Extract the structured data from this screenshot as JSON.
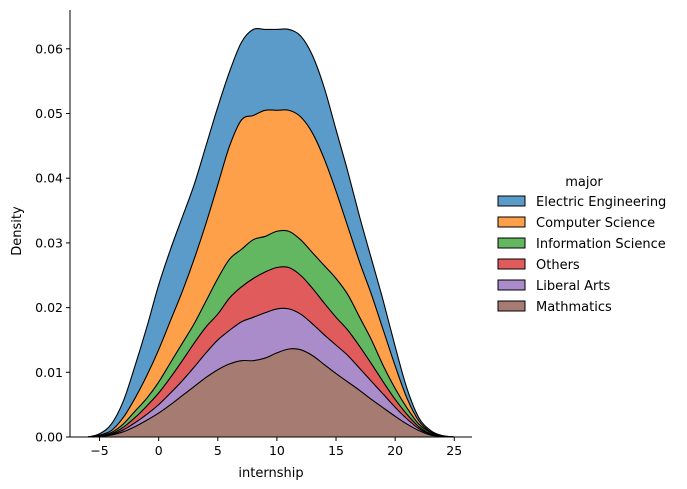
{
  "chart_data": {
    "type": "area",
    "stacked": true,
    "xlabel": "internship",
    "ylabel": "Density",
    "xlim": [
      -7.5,
      26.5
    ],
    "ylim": [
      0,
      0.066
    ],
    "xticks": [
      -5,
      0,
      5,
      10,
      15,
      20,
      25
    ],
    "yticks": [
      0.0,
      0.01,
      0.02,
      0.03,
      0.04,
      0.05,
      0.06
    ],
    "ytick_labels": [
      "0.00",
      "0.01",
      "0.02",
      "0.03",
      "0.04",
      "0.05",
      "0.06"
    ],
    "grid": false,
    "legend": {
      "title": "major",
      "placement": "right"
    },
    "x": [
      -6,
      -5,
      -4,
      -3,
      -2,
      -1,
      0,
      1,
      2,
      3,
      4,
      5,
      6,
      7,
      8,
      9,
      10,
      11,
      12,
      13,
      14,
      15,
      16,
      17,
      18,
      19,
      20,
      21,
      22,
      23,
      24,
      25
    ],
    "series": [
      {
        "name": "Electric Engineering",
        "color": "#5a9bc9",
        "cum": [
          0,
          0.0005,
          0.002,
          0.0055,
          0.011,
          0.017,
          0.0235,
          0.029,
          0.034,
          0.039,
          0.045,
          0.051,
          0.0565,
          0.061,
          0.063,
          0.063,
          0.063,
          0.063,
          0.062,
          0.059,
          0.054,
          0.0475,
          0.041,
          0.034,
          0.0275,
          0.021,
          0.014,
          0.0075,
          0.003,
          0.001,
          0.0002,
          0
        ]
      },
      {
        "name": "Computer Science",
        "color": "#fea04a",
        "cum": [
          0,
          0.0003,
          0.001,
          0.003,
          0.006,
          0.0095,
          0.0135,
          0.018,
          0.0225,
          0.0275,
          0.033,
          0.039,
          0.045,
          0.049,
          0.0497,
          0.0505,
          0.0505,
          0.0505,
          0.0495,
          0.047,
          0.043,
          0.038,
          0.0325,
          0.027,
          0.022,
          0.0165,
          0.011,
          0.006,
          0.0025,
          0.0008,
          0.0002,
          0
        ]
      },
      {
        "name": "Information Science",
        "color": "#63b760",
        "cum": [
          0,
          0.0002,
          0.0007,
          0.002,
          0.004,
          0.006,
          0.0085,
          0.0115,
          0.0145,
          0.0175,
          0.021,
          0.0245,
          0.0275,
          0.029,
          0.0305,
          0.031,
          0.0318,
          0.0318,
          0.0305,
          0.0285,
          0.0265,
          0.0245,
          0.022,
          0.0185,
          0.015,
          0.011,
          0.0075,
          0.0045,
          0.002,
          0.0007,
          0.0001,
          0
        ]
      },
      {
        "name": "Others",
        "color": "#e05c5c",
        "cum": [
          0,
          0.0001,
          0.0005,
          0.0015,
          0.003,
          0.0048,
          0.0068,
          0.0092,
          0.0118,
          0.0145,
          0.017,
          0.019,
          0.0215,
          0.0232,
          0.0245,
          0.0255,
          0.0262,
          0.0262,
          0.025,
          0.023,
          0.0207,
          0.0185,
          0.0165,
          0.014,
          0.0113,
          0.0085,
          0.0058,
          0.0035,
          0.0016,
          0.0005,
          0.0001,
          0
        ]
      },
      {
        "name": "Liberal Arts",
        "color": "#ab8ccb",
        "cum": [
          0,
          0.0001,
          0.0004,
          0.0011,
          0.0022,
          0.0035,
          0.005,
          0.0068,
          0.0087,
          0.0108,
          0.013,
          0.015,
          0.0165,
          0.0178,
          0.0185,
          0.0192,
          0.0198,
          0.0198,
          0.019,
          0.0175,
          0.0158,
          0.0142,
          0.0126,
          0.0106,
          0.0086,
          0.0066,
          0.0046,
          0.0028,
          0.0013,
          0.0004,
          0.0001,
          0
        ]
      },
      {
        "name": "Mathmatics",
        "color": "#a67c72",
        "cum": [
          0,
          0.0001,
          0.0003,
          0.0008,
          0.0016,
          0.0026,
          0.0037,
          0.005,
          0.0064,
          0.0078,
          0.0092,
          0.0104,
          0.0113,
          0.0118,
          0.0118,
          0.0122,
          0.013,
          0.0136,
          0.0135,
          0.0126,
          0.0112,
          0.0098,
          0.0085,
          0.0072,
          0.0058,
          0.0045,
          0.0032,
          0.002,
          0.001,
          0.0003,
          0.0001,
          0
        ]
      }
    ]
  }
}
